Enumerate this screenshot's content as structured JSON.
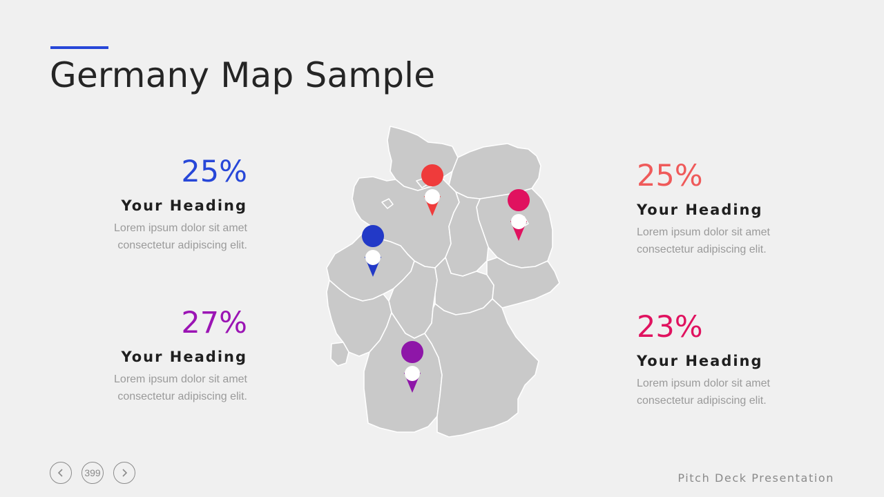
{
  "title": "Germany Map Sample",
  "colors": {
    "accent": "#2747d8",
    "stat1": "#2747d8",
    "stat2": "#ef5a5a",
    "stat3": "#9b14b4",
    "stat4": "#e0125f",
    "map_fill": "#c9c9c9",
    "map_border": "#ffffff"
  },
  "stats": {
    "left_top": {
      "value": "25%",
      "heading": "Your Heading",
      "line1": "Lorem ipsum dolor sit amet",
      "line2": "consectetur adipiscing elit."
    },
    "left_bottom": {
      "value": "27%",
      "heading": "Your Heading",
      "line1": "Lorem ipsum dolor sit amet",
      "line2": "consectetur adipiscing elit."
    },
    "right_top": {
      "value": "25%",
      "heading": "Your Heading",
      "line1": "Lorem ipsum dolor sit amet",
      "line2": "consectetur adipiscing elit."
    },
    "right_bottom": {
      "value": "23%",
      "heading": "Your Heading",
      "line1": "Lorem ipsum dolor sit amet",
      "line2": "consectetur adipiscing elit."
    }
  },
  "pins": [
    {
      "name": "pin-north",
      "color": "#ef3b3b"
    },
    {
      "name": "pin-east",
      "color": "#e0125f"
    },
    {
      "name": "pin-west",
      "color": "#2239c7"
    },
    {
      "name": "pin-south",
      "color": "#8e16a8"
    }
  ],
  "nav": {
    "prev_icon": "chevron-left-icon",
    "next_icon": "chevron-right-icon",
    "page_number": "399"
  },
  "footer": "Pitch Deck Presentation"
}
